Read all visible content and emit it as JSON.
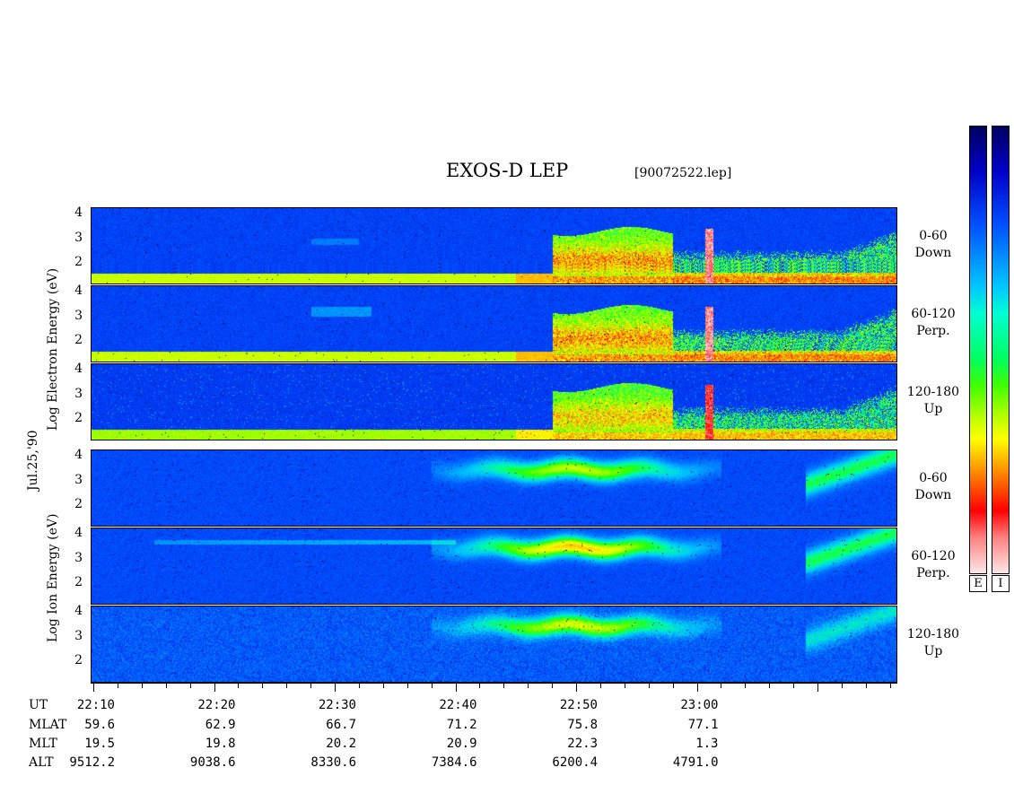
{
  "header": {
    "title": "EXOS-D LEP",
    "file": "[90072522.lep]"
  },
  "date_label": "Jul.25,'90",
  "electron_label": [
    "Log",
    "Electron",
    "Energy",
    "(eV)"
  ],
  "ion_label": [
    "Log",
    "Ion",
    "Energy",
    "(eV)"
  ],
  "panel_labels": [
    {
      "range": "0-60",
      "dir": "Down"
    },
    {
      "range": "60-120",
      "dir": "Perp."
    },
    {
      "range": "120-180",
      "dir": "Up"
    },
    {
      "range": "0-60",
      "dir": "Down"
    },
    {
      "range": "60-120",
      "dir": "Perp."
    },
    {
      "range": "120-180",
      "dir": "Up"
    }
  ],
  "yticks": [
    "4",
    "3",
    "2"
  ],
  "colorbars": {
    "electron_label": "E",
    "ion_label": "I"
  },
  "ephemeris": {
    "labels": [
      "UT",
      "MLAT",
      "MLT",
      "ALT"
    ],
    "ut": [
      "22:10",
      "22:20",
      "22:30",
      "22:40",
      "22:50",
      "23:00"
    ],
    "mlat": [
      "59.6",
      "62.9",
      "66.7",
      "71.2",
      "75.8",
      "77.1"
    ],
    "mlt": [
      "19.5",
      "19.8",
      "20.2",
      "20.9",
      "22.3",
      "1.3"
    ],
    "alt": [
      "9512.2",
      "9038.6",
      "8330.6",
      "7384.6",
      "6200.4",
      "4791.0"
    ]
  },
  "chart_data": {
    "type": "heatmap",
    "title": "EXOS-D LEP",
    "xlabel": "UT",
    "ylabel": "Log Energy (eV)",
    "x_range": [
      "22:10",
      "23:07"
    ],
    "ylim": [
      1,
      4
    ],
    "colorscale": [
      "#000060",
      "#0000c8",
      "#0050ff",
      "#00c8ff",
      "#00ff60",
      "#c8ff00",
      "#ffff00",
      "#ff4000",
      "#ff0000",
      "#ffe8e8"
    ],
    "panels": [
      {
        "species": "Electron",
        "pitch": "0-60",
        "dir": "Down"
      },
      {
        "species": "Electron",
        "pitch": "60-120",
        "dir": "Perp."
      },
      {
        "species": "Electron",
        "pitch": "120-180",
        "dir": "Up"
      },
      {
        "species": "Ion",
        "pitch": "0-60",
        "dir": "Down"
      },
      {
        "species": "Ion",
        "pitch": "60-120",
        "dir": "Perp."
      },
      {
        "species": "Ion",
        "pitch": "120-180",
        "dir": "Up"
      }
    ]
  }
}
